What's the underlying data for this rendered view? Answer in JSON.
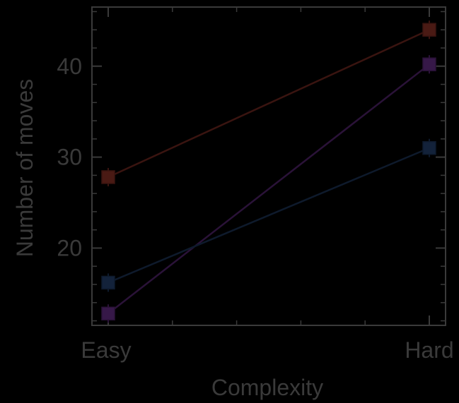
{
  "chart_data": {
    "type": "line",
    "xlabel": "Complexity",
    "ylabel": "Number of moves",
    "categories": [
      "Easy",
      "Hard"
    ],
    "yticks": [
      20,
      30,
      40
    ],
    "ylim": [
      11.5,
      46.5
    ],
    "grid": false,
    "legend": "none",
    "series": [
      {
        "color": "#3a1410",
        "marker_color": "#4a1a14",
        "values": [
          27.8,
          44.0
        ]
      },
      {
        "color": "#2a1238",
        "marker_color": "#361848",
        "values": [
          12.8,
          40.2
        ]
      },
      {
        "color": "#0e1a2c",
        "marker_color": "#13223a",
        "values": [
          16.2,
          31.0
        ]
      }
    ],
    "colors": {
      "background": "#000000",
      "axis": "#3a3a3a",
      "text": "#3a3a3a"
    }
  }
}
